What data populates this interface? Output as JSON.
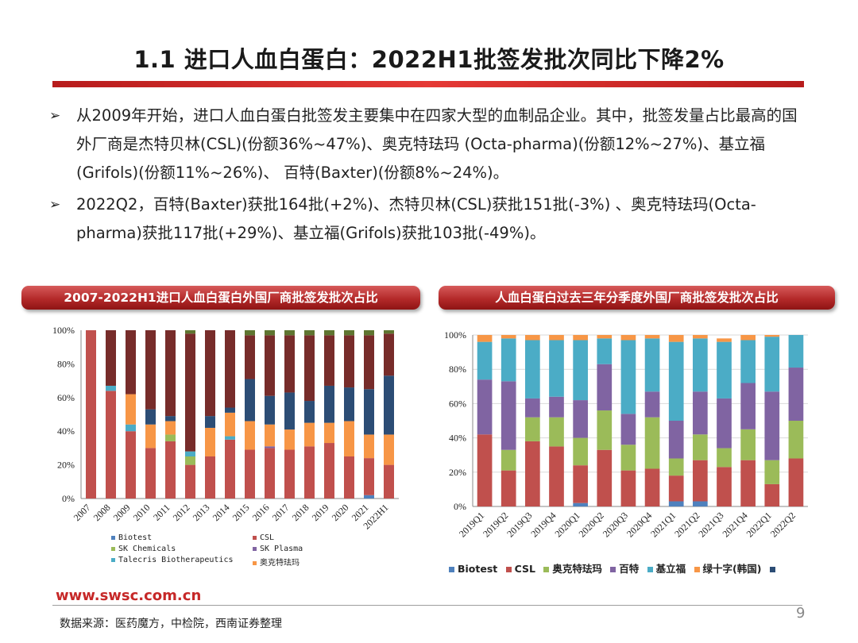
{
  "slide": {
    "title": "1.1 进口人血白蛋白：2022H1批签发批次同比下降2%",
    "bullets": [
      {
        "mark": "➢",
        "text": "从2009年开始，进口人血白蛋白批签发主要集中在四家大型的血制品企业。其中，批签发量占比最高的国外厂商是杰特贝林(CSL)(份额36%~47%)、奥克特珐玛 (Octa-pharma)(份额12%~27%)、基立福(Grifols)(份额11%~26%)、 百特(Baxter)(份额8%~24%)。"
      },
      {
        "mark": "➢",
        "text": "2022Q2，百特(Baxter)获批164批(+2%)、杰特贝林(CSL)获批151批(-3%) 、奥克特珐玛(Octa-pharma)获批117批(+29%)、基立福(Grifols)获批103批(-49%)。"
      }
    ],
    "banner_left": "2007-2022H1进口人血白蛋白外国厂商批签发批次占比",
    "banner_right": "人血白蛋白过去三年分季度外国厂商批签发批次占比",
    "website": "www.swsc.com.cn",
    "source": "数据来源：医药魔方，中检院，西南证券整理",
    "page_number": "9"
  },
  "chart_data": [
    {
      "type": "bar",
      "stacked": true,
      "title": "2007-2022H1进口人血白蛋白外国厂商批签发批次占比",
      "categories": [
        "2007",
        "2008",
        "2009",
        "2010",
        "2011",
        "2012",
        "2013",
        "2014",
        "2015",
        "2016",
        "2017",
        "2018",
        "2019",
        "2020",
        "2021",
        "2022H1"
      ],
      "ylim": [
        0,
        100
      ],
      "yticks": [
        "0%",
        "20%",
        "40%",
        "60%",
        "80%",
        "100%"
      ],
      "series": [
        {
          "name": "Biotest",
          "color": "#4f81bd",
          "values": [
            0,
            0,
            0,
            0,
            0,
            0,
            0,
            0,
            0,
            0,
            0,
            0,
            0,
            0,
            2,
            0
          ]
        },
        {
          "name": "CSL",
          "color": "#c0504d",
          "values": [
            100,
            64,
            40,
            30,
            34,
            20,
            25,
            35,
            29,
            30,
            29,
            31,
            33,
            25,
            22,
            20
          ]
        },
        {
          "name": "SK Chemicals",
          "color": "#9bbb59",
          "values": [
            0,
            0,
            0,
            0,
            4,
            5,
            0,
            0,
            0,
            0,
            0,
            0,
            0,
            0,
            0,
            0
          ]
        },
        {
          "name": "SK Plasma",
          "color": "#8064a2",
          "values": [
            0,
            0,
            0,
            0,
            0,
            0,
            0,
            0,
            0,
            1,
            0,
            0,
            0,
            0,
            0,
            0
          ]
        },
        {
          "name": "Talecris Biotherapeutics",
          "color": "#4bacc6",
          "values": [
            0,
            3,
            4,
            0,
            0,
            3,
            0,
            2,
            0,
            0,
            0,
            0,
            0,
            0,
            0,
            0
          ]
        },
        {
          "name": "奥克特珐玛",
          "color": "#f79646",
          "values": [
            0,
            0,
            18,
            14,
            8,
            0,
            17,
            14,
            17,
            13,
            12,
            14,
            12,
            21,
            14,
            18
          ]
        },
        {
          "name": "",
          "color": "#2c4d75",
          "values": [
            0,
            0,
            0,
            9,
            3,
            0,
            7,
            3,
            25,
            17,
            22,
            13,
            22,
            20,
            27,
            35
          ]
        },
        {
          "name": "",
          "color": "#772c2a",
          "values": [
            0,
            33,
            38,
            47,
            51,
            70,
            51,
            46,
            26,
            36,
            34,
            39,
            30,
            31,
            32,
            25
          ]
        },
        {
          "name": "",
          "color": "#5f7530",
          "values": [
            0,
            0,
            0,
            0,
            0,
            2,
            0,
            0,
            3,
            3,
            3,
            3,
            3,
            3,
            3,
            2
          ]
        }
      ],
      "legend": {
        "position": "bottom",
        "entries": [
          {
            "label": "Biotest",
            "color": "#4f81bd"
          },
          {
            "label": "CSL",
            "color": "#c0504d"
          },
          {
            "label": "SK Chemicals",
            "color": "#9bbb59"
          },
          {
            "label": "SK Plasma",
            "color": "#8064a2"
          },
          {
            "label": "Talecris Biotherapeutics",
            "color": "#4bacc6"
          },
          {
            "label": "奥克特珐玛",
            "color": "#f79646"
          }
        ]
      }
    },
    {
      "type": "bar",
      "stacked": true,
      "title": "人血白蛋白过去三年分季度外国厂商批签发批次占比",
      "categories": [
        "2019Q1",
        "2019Q2",
        "2019Q3",
        "2019Q4",
        "2020Q1",
        "2020Q2",
        "2020Q3",
        "2020Q4",
        "2021Q1",
        "2021Q2",
        "2021Q3",
        "2021Q4",
        "2022Q1",
        "2022Q2"
      ],
      "ylim": [
        0,
        100
      ],
      "yticks": [
        "0%",
        "20%",
        "40%",
        "60%",
        "80%",
        "100%"
      ],
      "series": [
        {
          "name": "Biotest",
          "color": "#4f81bd",
          "values": [
            0,
            0,
            0,
            0,
            2,
            0,
            0,
            0,
            3,
            3,
            0,
            0,
            0,
            0
          ]
        },
        {
          "name": "CSL",
          "color": "#c0504d",
          "values": [
            42,
            21,
            38,
            35,
            22,
            33,
            21,
            22,
            15,
            24,
            23,
            27,
            13,
            28
          ]
        },
        {
          "name": "奥克特珐玛",
          "color": "#9bbb59",
          "values": [
            0,
            12,
            14,
            17,
            16,
            23,
            15,
            30,
            10,
            15,
            11,
            18,
            14,
            22
          ]
        },
        {
          "name": "百特",
          "color": "#8064a2",
          "values": [
            32,
            40,
            11,
            12,
            22,
            27,
            18,
            15,
            22,
            25,
            29,
            27,
            40,
            31
          ]
        },
        {
          "name": "基立福",
          "color": "#4bacc6",
          "values": [
            22,
            25,
            34,
            33,
            35,
            15,
            43,
            31,
            46,
            31,
            33,
            25,
            32,
            19
          ]
        },
        {
          "name": "绿十字(韩国)",
          "color": "#f79646",
          "values": [
            4,
            2,
            3,
            3,
            3,
            2,
            3,
            2,
            4,
            2,
            2,
            3,
            1,
            0
          ]
        },
        {
          "name": "",
          "color": "#2c4d75",
          "values": [
            0,
            0,
            0,
            0,
            0,
            0,
            0,
            0,
            0,
            0,
            0,
            0,
            0,
            0
          ]
        }
      ],
      "legend": {
        "position": "bottom",
        "entries": [
          {
            "label": "Biotest",
            "color": "#4f81bd"
          },
          {
            "label": "CSL",
            "color": "#c0504d"
          },
          {
            "label": "奥克特珐玛",
            "color": "#9bbb59"
          },
          {
            "label": "百特",
            "color": "#8064a2"
          },
          {
            "label": "基立福",
            "color": "#4bacc6"
          },
          {
            "label": "绿十字(韩国)",
            "color": "#f79646"
          },
          {
            "label": "",
            "color": "#2c4d75"
          }
        ]
      }
    }
  ]
}
